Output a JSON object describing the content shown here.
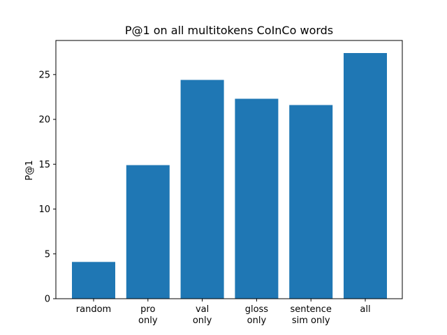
{
  "chart_data": {
    "type": "bar",
    "title": "P@1 on all multitokens CoInCo words",
    "xlabel": "",
    "ylabel": "P@1",
    "categories": [
      [
        "random"
      ],
      [
        "pro",
        "only"
      ],
      [
        "val",
        "only"
      ],
      [
        "gloss",
        "only"
      ],
      [
        "sentence",
        "sim only"
      ],
      [
        "all"
      ]
    ],
    "values": [
      4.1,
      14.9,
      24.4,
      22.3,
      21.6,
      27.4
    ],
    "ylim": [
      0,
      28.8
    ],
    "yticks": [
      "0",
      "5",
      "10",
      "15",
      "20",
      "25"
    ],
    "bar_color": "#1f77b4",
    "grid": false,
    "legend": "none"
  }
}
